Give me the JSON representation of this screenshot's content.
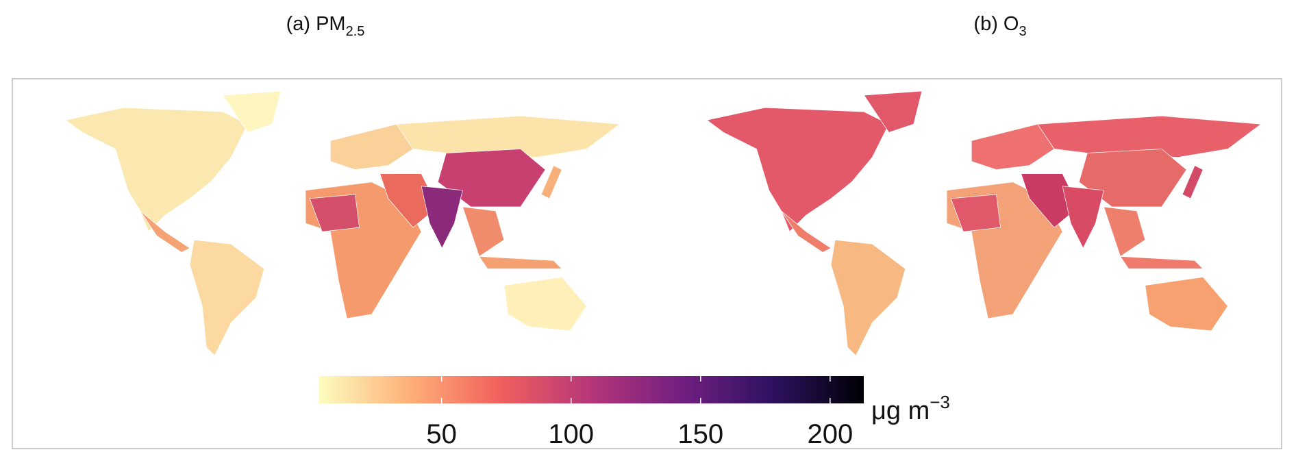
{
  "chart_data": {
    "type": "choropleth",
    "panels": [
      {
        "title": "(a) PM",
        "title_sub": "2.5"
      },
      {
        "title": "(b) O",
        "title_sub": "3"
      }
    ],
    "colorbar": {
      "lim": [
        2.5,
        213
      ],
      "ticks": [
        50,
        100,
        150,
        200
      ],
      "unit": "μg m",
      "unit_sup": "−3",
      "colormap": [
        "#fcfdbf",
        "#feb078",
        "#f1605d",
        "#b63679",
        "#721f81",
        "#2d1160",
        "#000004"
      ]
    }
  }
}
